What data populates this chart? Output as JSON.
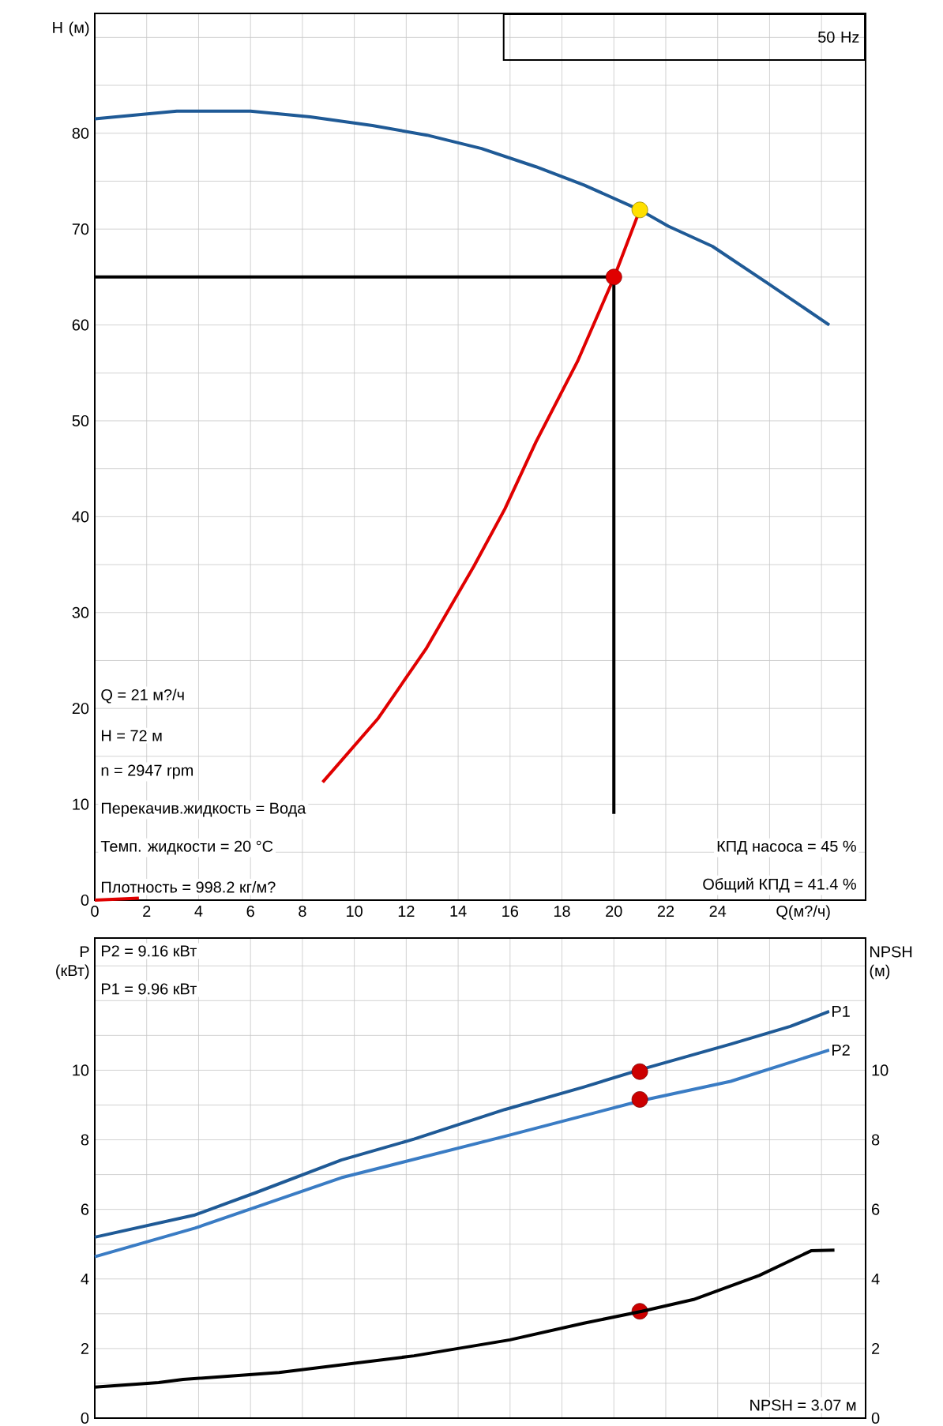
{
  "chart_data": [
    {
      "type": "line",
      "title": "50 Hz",
      "xlabel": "Q(м?/ч)",
      "ylabel": "H (м)",
      "xlim": [
        0,
        29.7
      ],
      "ylim": [
        0,
        92.5
      ],
      "xticks": [
        0,
        2,
        4,
        6,
        8,
        10,
        12,
        14,
        16,
        18,
        20,
        22,
        24,
        {
          "value": 26,
          "label": null
        },
        {
          "value": 28,
          "label": null
        }
      ],
      "yticks": [
        0,
        {
          "value": 5,
          "label": null
        },
        10,
        {
          "value": 15,
          "label": null
        },
        20,
        {
          "value": 25,
          "label": null
        },
        30,
        {
          "value": 35,
          "label": null
        },
        40,
        {
          "value": 45,
          "label": null
        },
        50,
        {
          "value": 55,
          "label": null
        },
        60,
        {
          "value": 65,
          "label": null
        },
        70,
        {
          "value": 75,
          "label": null
        },
        80,
        {
          "value": 85,
          "label": null
        },
        {
          "value": 90,
          "label": null
        }
      ],
      "grid": true,
      "series": [
        {
          "color": "#1f5a96",
          "x": [
            0,
            3.16,
            6,
            8.3,
            10.7,
            12.8,
            14.9,
            17,
            18.85,
            21,
            22.1,
            23.8,
            25.9,
            28.3
          ],
          "values": [
            81.5,
            82.3,
            82.3,
            81.7,
            80.8,
            79.8,
            78.4,
            76.5,
            74.6,
            72,
            70.3,
            68.2,
            64.4,
            60
          ]
        },
        {
          "color": "#e00000",
          "x": [
            0,
            1.7,
            5,
            8.78,
            10.9,
            12.76,
            14.6,
            15.8,
            17,
            18.6,
            20,
            21
          ],
          "values": [
            0,
            0.2,
            null,
            12.3,
            18.9,
            26.2,
            34.8,
            40.8,
            47.8,
            56.2,
            64.9,
            72
          ]
        },
        {
          "color": "#000000",
          "x": [
            0,
            20,
            20
          ],
          "values": [
            65,
            65,
            9
          ]
        },
        {
          "type": "scatter",
          "color": "#e00000",
          "x": [
            20
          ],
          "values": [
            65
          ]
        },
        {
          "type": "scatter",
          "color": "#ffe000",
          "x": [
            21
          ],
          "values": [
            72
          ]
        }
      ],
      "annotations": [
        "Q = 21 м?/ч",
        "H = 72 м",
        "n = 2947 rpm",
        "Перекачив.жидкость = Вода",
        "Темп. жидкости = 20 °C",
        "Плотность = 998.2 кг/м?",
        "КПД насоса = 45 %",
        "Общий КПД = 41.4 %"
      ]
    },
    {
      "type": "line",
      "ylabel": "P (кВт)",
      "y2label": "NPSH (м)",
      "xlim": [
        0,
        29.7
      ],
      "ylim": [
        0,
        13.8
      ],
      "y2lim": [
        0,
        13.8
      ],
      "tick_labels": "y",
      "xticks": [
        {
          "value": 0,
          "label": null
        },
        {
          "value": 2,
          "label": null
        },
        {
          "value": 4,
          "label": null
        },
        {
          "value": 6,
          "label": null
        },
        {
          "value": 8,
          "label": null
        },
        {
          "value": 10,
          "label": null
        },
        {
          "value": 12,
          "label": null
        },
        {
          "value": 14,
          "label": null
        },
        {
          "value": 16,
          "label": null
        },
        {
          "value": 18,
          "label": null
        },
        {
          "value": 20,
          "label": null
        },
        {
          "value": 22,
          "label": null
        },
        {
          "value": 24,
          "label": null
        },
        {
          "value": 26,
          "label": null
        },
        {
          "value": 28,
          "label": null
        }
      ],
      "yticks": [
        0,
        {
          "value": 1,
          "label": null
        },
        2,
        {
          "value": 3,
          "label": null
        },
        4,
        {
          "value": 5,
          "label": null
        },
        6,
        {
          "value": 7,
          "label": null
        },
        8,
        {
          "value": 9,
          "label": null
        },
        10,
        {
          "value": 11,
          "label": null
        },
        {
          "value": 12,
          "label": null
        },
        {
          "value": 13,
          "label": null
        }
      ],
      "y2ticks": [
        0,
        2,
        4,
        6,
        8,
        10
      ],
      "grid": true,
      "series": [
        {
          "name": "P1",
          "color": "#1f5a96",
          "x": [
            0,
            3.86,
            6.2,
            9.5,
            12.3,
            15.8,
            18.85,
            21.08,
            24.5,
            26.8,
            28.3
          ],
          "values": [
            5.2,
            5.84,
            6.48,
            7.42,
            8.02,
            8.87,
            9.52,
            10.03,
            10.75,
            11.26,
            11.69
          ]
        },
        {
          "name": "P2",
          "color": "#3a7cc4",
          "x": [
            0,
            3.86,
            9.5,
            15.8,
            21.08,
            24.5,
            28.3
          ],
          "values": [
            4.64,
            5.46,
            6.91,
            8.1,
            9.13,
            9.68,
            10.58
          ]
        },
        {
          "axis": "y2",
          "color": "#000000",
          "x": [
            0,
            2.46,
            3.4,
            7.1,
            12.3,
            16,
            18.85,
            21.08,
            23.07,
            25.6,
            27.6,
            28.5
          ],
          "values": [
            0.89,
            1.02,
            1.11,
            1.31,
            1.79,
            2.25,
            2.73,
            3.07,
            3.41,
            4.1,
            4.81,
            4.83
          ]
        },
        {
          "type": "scatter",
          "color": "#cc0000",
          "x": [
            21,
            21,
            21
          ],
          "values": [
            9.96,
            9.16,
            3.07
          ]
        }
      ],
      "annotations": [
        "P2 = 9.16 кВт",
        "P1 = 9.96 кВт",
        "NPSH = 3.07 м"
      ]
    }
  ]
}
